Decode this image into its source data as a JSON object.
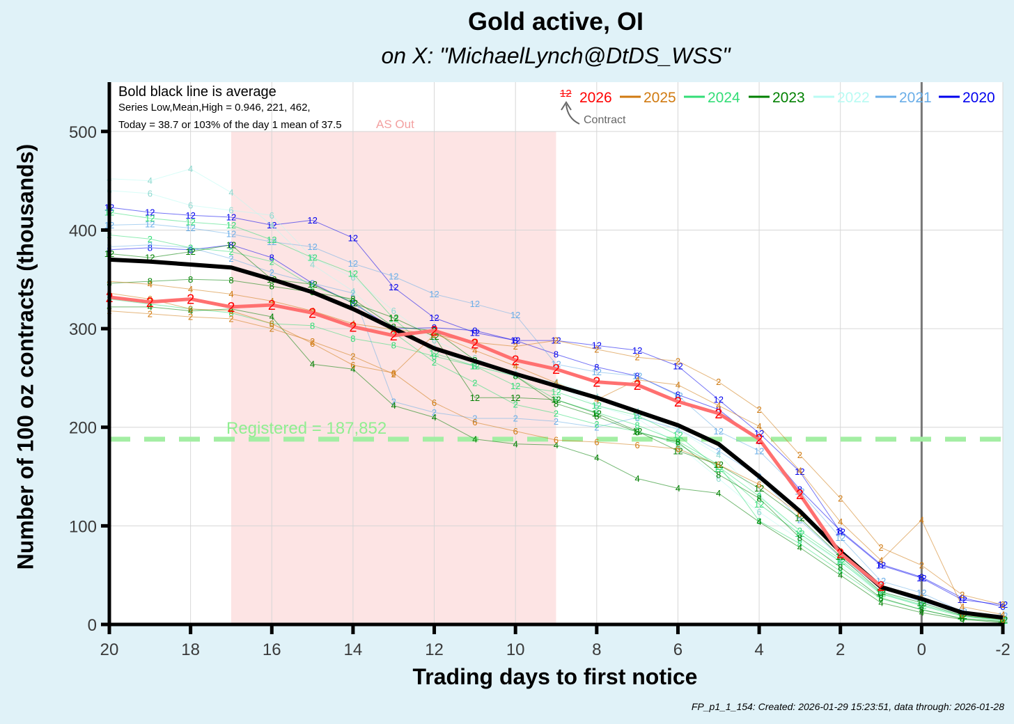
{
  "chart_data": {
    "type": "line",
    "title": "Gold active, OI",
    "subtitle": "on X:   \"MichaelLynch@DtDS_WSS\"",
    "xlabel": "Trading days to first notice",
    "ylabel": "Number of 100 oz contracts (thousands)",
    "xlim": [
      20,
      -2
    ],
    "ylim": [
      0,
      550
    ],
    "x_ticks": [
      20,
      18,
      16,
      14,
      12,
      10,
      8,
      6,
      4,
      2,
      0,
      -2
    ],
    "y_ticks": [
      0,
      100,
      200,
      300,
      400,
      500
    ],
    "grid": true,
    "annotations": {
      "avg_note": "Bold black line is average",
      "stats_note": "Series Low,Mean,High = 0.946, 221, 462,",
      "today_note": "Today = 38.7 or 103% of the day 1 mean of 37.5",
      "shade_label": "AS Out",
      "contract_symbol": "12",
      "contract_label": "Contract",
      "registered_label": "Registered = 187,852"
    },
    "shaded_region": {
      "x_from": 17,
      "x_to": 9,
      "label": "AS Out",
      "color": "#fde4e4"
    },
    "registered_level": 187.852,
    "first_notice_x": 0,
    "legend": [
      {
        "name": "2026",
        "color": "#ff0000"
      },
      {
        "name": "2025",
        "color": "#d07a10"
      },
      {
        "name": "2024",
        "color": "#33dd77"
      },
      {
        "name": "2023",
        "color": "#008000"
      },
      {
        "name": "2022",
        "color": "#b8fbf3"
      },
      {
        "name": "2021",
        "color": "#6aaee8"
      },
      {
        "name": "2020",
        "color": "#0000ee"
      }
    ],
    "average": {
      "name": "average",
      "color": "#000000",
      "x": [
        20,
        19,
        18,
        17,
        16,
        15,
        14,
        13,
        12,
        11,
        10,
        9,
        8,
        7,
        6,
        5,
        4,
        3,
        2,
        1,
        0,
        -1,
        -2
      ],
      "values": [
        370,
        368,
        365,
        362,
        350,
        337,
        320,
        300,
        280,
        267,
        254,
        242,
        230,
        216,
        202,
        183,
        150,
        115,
        74,
        38,
        26,
        12,
        7
      ]
    },
    "series": [
      {
        "name": "2026",
        "label": "2",
        "color": "#ff0000",
        "x": [
          20,
          19,
          18,
          17,
          16,
          15,
          14,
          13,
          12,
          11,
          10,
          9,
          8,
          7,
          6,
          5,
          4,
          3,
          2,
          1
        ],
        "values": [
          332,
          327,
          330,
          322,
          324,
          316,
          302,
          293,
          298,
          285,
          268,
          259,
          246,
          243,
          226,
          214,
          188,
          132,
          72,
          38.7
        ]
      },
      {
        "name": "2020",
        "label": "12",
        "color": "#0000ee",
        "x": [
          20,
          19,
          18,
          17,
          16,
          15,
          14,
          13,
          12,
          11,
          10,
          9,
          8,
          7,
          6,
          5,
          4,
          3,
          2,
          1,
          0,
          -1,
          -2
        ],
        "values": [
          423,
          418,
          415,
          413,
          405,
          410,
          392,
          342,
          311,
          296,
          288,
          288,
          283,
          278,
          262,
          228,
          194,
          155,
          94,
          60,
          47,
          25,
          20
        ]
      },
      {
        "name": "2020",
        "label": "8",
        "color": "#0000ee",
        "x": [
          20,
          19,
          18,
          17,
          16,
          15,
          14,
          13,
          12,
          11,
          10,
          9,
          8,
          7,
          6,
          5,
          4,
          3,
          2,
          1,
          0,
          -1,
          -2
        ],
        "values": [
          380,
          382,
          380,
          385,
          372,
          346,
          326,
          300,
          301,
          298,
          288,
          274,
          261,
          252,
          233,
          218,
          186,
          137,
          95,
          61,
          48,
          27,
          18
        ]
      },
      {
        "name": "2021",
        "label": "12",
        "color": "#6aaee8",
        "x": [
          20,
          19,
          18,
          17,
          16,
          15,
          14,
          13,
          12,
          11,
          10,
          9,
          8,
          7,
          6,
          5,
          4,
          3,
          2,
          1,
          0,
          -1,
          -2
        ],
        "values": [
          405,
          406,
          402,
          396,
          388,
          383,
          366,
          353,
          335,
          325,
          314,
          264,
          256,
          252,
          232,
          196,
          176,
          135,
          88,
          44,
          32,
          13,
          9
        ]
      },
      {
        "name": "2021",
        "label": "2",
        "color": "#6aaee8",
        "x": [
          20,
          19,
          18,
          17,
          16,
          15,
          14,
          13,
          12,
          11,
          10,
          9,
          8,
          7,
          6,
          5,
          4,
          3,
          2,
          1,
          0,
          -1,
          -2
        ],
        "values": [
          383,
          385,
          382,
          371,
          357,
          346,
          336,
          226,
          215,
          209,
          209,
          206,
          200,
          210,
          198,
          176,
          150,
          106,
          68,
          37,
          23,
          12,
          6
        ]
      },
      {
        "name": "2022",
        "label": "4",
        "color": "#b8fbf3",
        "x": [
          20,
          19,
          18,
          17,
          16,
          15,
          14,
          13,
          12,
          11,
          10,
          9,
          8,
          7,
          6,
          5,
          4,
          3,
          2,
          1,
          0,
          -1,
          -2
        ],
        "values": [
          452,
          450,
          462,
          438,
          405,
          365,
          338,
          300,
          280,
          262,
          252,
          246,
          231,
          216,
          197,
          172,
          132,
          90,
          63,
          34,
          22,
          10,
          5
        ]
      },
      {
        "name": "2022",
        "label": "6",
        "color": "#b8fbf3",
        "x": [
          20,
          19,
          18,
          17,
          16,
          15,
          14,
          13,
          12,
          11,
          10,
          9,
          8,
          7,
          6,
          5,
          4,
          3,
          2,
          1,
          0,
          -1,
          -2
        ],
        "values": [
          440,
          437,
          425,
          420,
          415,
          372,
          352,
          318,
          288,
          270,
          254,
          243,
          222,
          209,
          182,
          148,
          114,
          86,
          60,
          31,
          20,
          9,
          4
        ]
      },
      {
        "name": "2024",
        "label": "12",
        "color": "#33dd77",
        "x": [
          20,
          19,
          18,
          17,
          16,
          15,
          14,
          13,
          12,
          11,
          10,
          9,
          8,
          7,
          6,
          5,
          4,
          3,
          2,
          1,
          0,
          -1,
          -2
        ],
        "values": [
          418,
          412,
          408,
          405,
          390,
          372,
          356,
          310,
          275,
          262,
          242,
          236,
          222,
          212,
          192,
          158,
          122,
          92,
          64,
          31,
          19,
          8,
          4
        ]
      },
      {
        "name": "2024",
        "label": "2",
        "color": "#33dd77",
        "x": [
          20,
          19,
          18,
          17,
          16,
          15,
          14,
          13,
          12,
          11,
          10,
          9,
          8,
          7,
          6,
          5,
          4,
          3,
          2,
          1,
          0,
          -1,
          -2
        ],
        "values": [
          395,
          391,
          382,
          378,
          368,
          343,
          328,
          296,
          266,
          245,
          223,
          214,
          203,
          196,
          183,
          160,
          130,
          95,
          66,
          32,
          20,
          9,
          4
        ]
      },
      {
        "name": "2024",
        "label": "8",
        "color": "#33dd77",
        "x": [
          20,
          19,
          18,
          17,
          16,
          15,
          14,
          13,
          12,
          11,
          10,
          9,
          8,
          7,
          6,
          5,
          4,
          3,
          2,
          1,
          0,
          -1,
          -2
        ],
        "values": [
          330,
          325,
          320,
          316,
          305,
          303,
          290,
          283,
          272,
          262,
          252,
          228,
          215,
          202,
          186,
          162,
          105,
          82,
          54,
          26,
          15,
          6,
          3
        ]
      },
      {
        "name": "2023",
        "label": "12",
        "color": "#008000",
        "x": [
          20,
          19,
          18,
          17,
          16,
          15,
          14,
          13,
          12,
          11,
          10,
          9,
          8,
          7,
          6,
          5,
          4,
          3,
          2,
          1,
          0,
          -1,
          -2
        ],
        "values": [
          376,
          372,
          378,
          385,
          350,
          345,
          326,
          311,
          292,
          230,
          230,
          228,
          214,
          196,
          176,
          162,
          138,
          108,
          69,
          33,
          22,
          9,
          5
        ]
      },
      {
        "name": "2023",
        "label": "8",
        "color": "#008000",
        "x": [
          20,
          19,
          18,
          17,
          16,
          15,
          14,
          13,
          12,
          11,
          10,
          9,
          8,
          7,
          6,
          5,
          4,
          3,
          2,
          1,
          0,
          -1,
          -2
        ],
        "values": [
          346,
          348,
          350,
          349,
          343,
          337,
          330,
          302,
          298,
          268,
          252,
          224,
          211,
          195,
          185,
          152,
          128,
          88,
          58,
          27,
          15,
          6,
          3
        ]
      },
      {
        "name": "2023",
        "label": "4",
        "color": "#008000",
        "x": [
          20,
          19,
          18,
          17,
          16,
          15,
          14,
          13,
          12,
          11,
          10,
          9,
          8,
          7,
          6,
          5,
          4,
          3,
          2,
          1,
          0,
          -1,
          -2
        ],
        "values": [
          322,
          322,
          318,
          320,
          312,
          264,
          259,
          222,
          210,
          188,
          183,
          182,
          169,
          148,
          138,
          133,
          104,
          78,
          50,
          22,
          12,
          5,
          2
        ]
      },
      {
        "name": "2025",
        "label": "2",
        "color": "#d07a10",
        "x": [
          20,
          19,
          18,
          17,
          16,
          15,
          14,
          13,
          12,
          11,
          10,
          9,
          8,
          7,
          6,
          5,
          4,
          3,
          2,
          1,
          0,
          -1,
          -2
        ],
        "values": [
          318,
          315,
          312,
          310,
          300,
          287,
          272,
          254,
          294,
          286,
          282,
          288,
          279,
          271,
          267,
          246,
          218,
          172,
          128,
          78,
          60,
          30,
          20
        ]
      },
      {
        "name": "2025",
        "label": "4",
        "color": "#d07a10",
        "x": [
          20,
          19,
          18,
          17,
          16,
          15,
          14,
          13,
          12,
          11,
          10,
          9,
          8,
          7,
          6,
          5,
          4,
          3,
          2,
          1,
          0,
          -1,
          -2
        ],
        "values": [
          348,
          345,
          340,
          335,
          328,
          318,
          305,
          299,
          295,
          278,
          262,
          245,
          228,
          248,
          243,
          222,
          201,
          156,
          104,
          65,
          106,
          18,
          10
        ]
      },
      {
        "name": "2025",
        "label": "6",
        "color": "#d07a10",
        "x": [
          20,
          19,
          18,
          17,
          16,
          15,
          14,
          13,
          12,
          11,
          10,
          9,
          8,
          7,
          6,
          5,
          4,
          3,
          2,
          1,
          0,
          -1,
          -2
        ],
        "values": [
          336,
          330,
          320,
          318,
          305,
          285,
          263,
          255,
          225,
          205,
          196,
          187,
          185,
          182,
          178,
          162,
          142,
          112,
          74,
          38,
          27,
          10,
          5
        ]
      }
    ]
  }
}
